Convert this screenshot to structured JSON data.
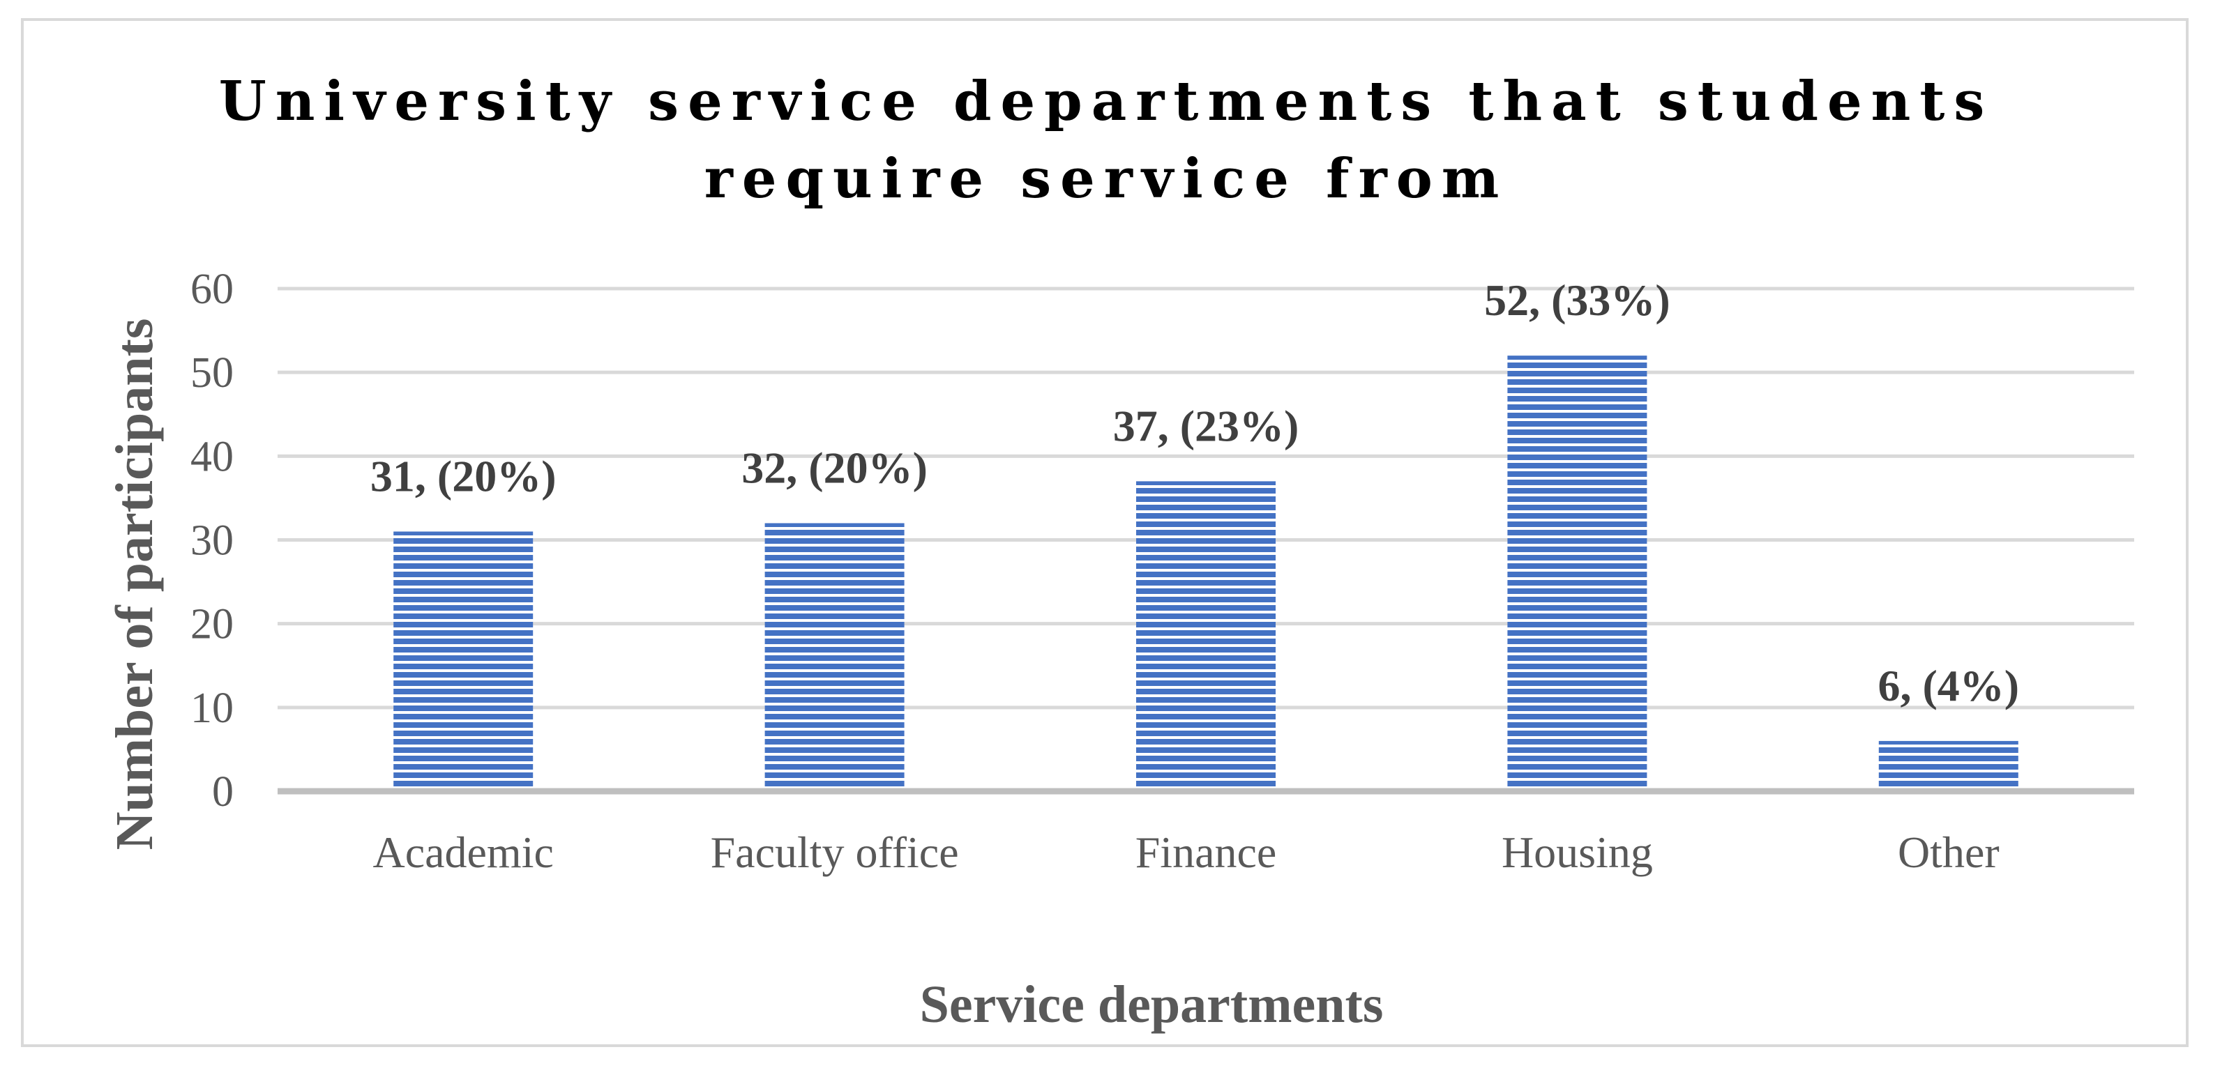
{
  "chart_data": {
    "type": "bar",
    "title_lines": [
      "University service departments that students",
      "require service from"
    ],
    "categories": [
      "Academic",
      "Faculty office",
      "Finance",
      "Housing",
      "Other"
    ],
    "values": [
      31,
      32,
      37,
      52,
      6
    ],
    "data_labels": [
      "31, (20%)",
      "32, (20%)",
      "37, (23%)",
      "52, (33%)",
      "6, (4%)"
    ],
    "xlabel": "Service departments",
    "ylabel": "Number of participants",
    "ylim": [
      0,
      60
    ],
    "yticks": [
      0,
      10,
      20,
      30,
      40,
      50,
      60
    ],
    "grid": true,
    "bar_color": "#4472c4",
    "bar_stripe_color": "#ffffff"
  }
}
